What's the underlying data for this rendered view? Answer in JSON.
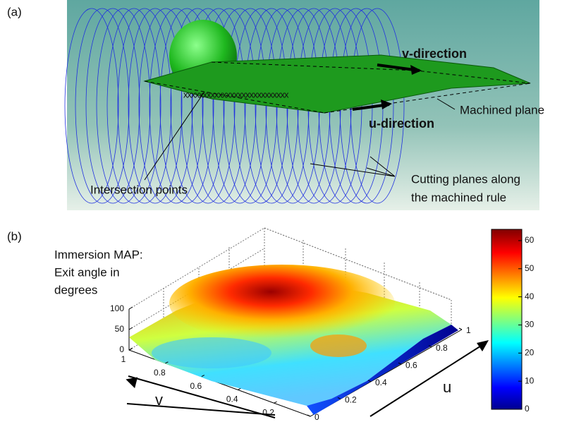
{
  "panel_a": {
    "label": "(a)",
    "annotations": {
      "v_direction": "v-direction",
      "u_direction": "u-direction",
      "machined_plane": "Machined plane",
      "cutting_planes": [
        "Cutting planes along",
        "the machined rule"
      ],
      "intersection_points": "Intersection points"
    }
  },
  "panel_b": {
    "label": "(b)",
    "title": [
      "Immersion MAP:",
      "Exit angle in",
      "degrees"
    ],
    "zlim": [
      0,
      100
    ],
    "zticks": [
      0,
      50,
      100
    ],
    "ulim": [
      0,
      1
    ],
    "uticks": [
      0,
      0.2,
      0.4,
      0.6,
      0.8,
      1
    ],
    "u_label": "u",
    "vlim": [
      0,
      1
    ],
    "vticks": [
      0.2,
      0.4,
      0.6,
      0.8,
      1
    ],
    "v_label": "v",
    "colorbar": {
      "lim": [
        0,
        64
      ],
      "ticks": [
        0,
        10,
        20,
        30,
        40,
        50,
        60
      ]
    }
  }
}
